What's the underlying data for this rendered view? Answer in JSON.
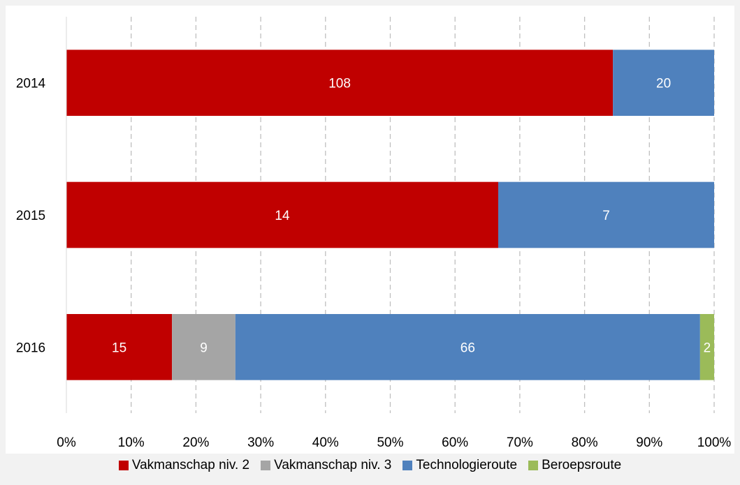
{
  "chart_data": {
    "type": "bar",
    "orientation": "horizontal",
    "stacked": "percent",
    "title": "",
    "xlabel": "",
    "ylabel": "",
    "xlim": [
      0,
      100
    ],
    "x_ticks": [
      "0%",
      "10%",
      "20%",
      "30%",
      "40%",
      "50%",
      "60%",
      "70%",
      "80%",
      "90%",
      "100%"
    ],
    "categories": [
      "2014",
      "2015",
      "2016"
    ],
    "series": [
      {
        "name": "Vakmanschap niv. 2",
        "color": "#c00000",
        "values": [
          108,
          14,
          15
        ]
      },
      {
        "name": "Vakmanschap niv. 3",
        "color": "#a5a5a5",
        "values": [
          0,
          0,
          9
        ]
      },
      {
        "name": "Technologieroute",
        "color": "#4f81bd",
        "values": [
          20,
          7,
          66
        ]
      },
      {
        "name": "Beroepsroute",
        "color": "#9bbb59",
        "values": [
          0,
          0,
          2
        ]
      }
    ],
    "grid": "vertical-dashed",
    "legend_position": "bottom",
    "data_labels": true
  }
}
